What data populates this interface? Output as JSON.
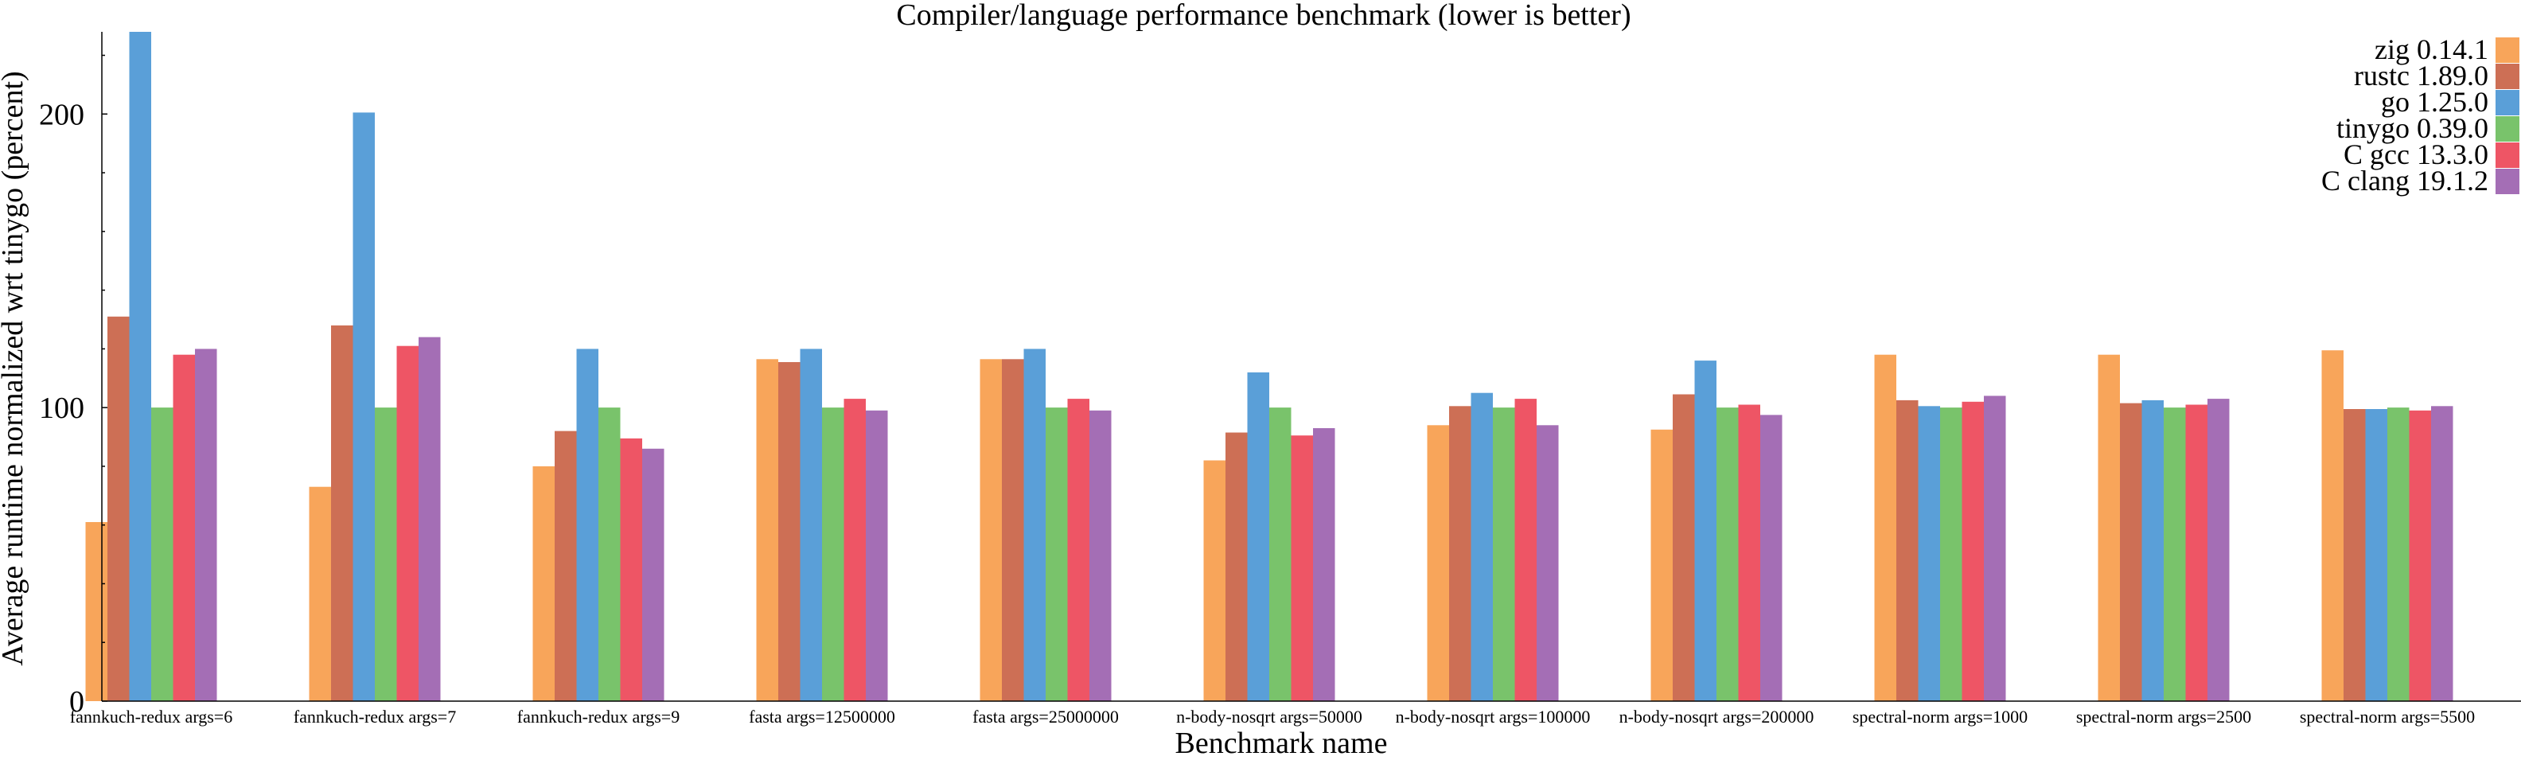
{
  "chart_data": {
    "type": "bar",
    "title": "Compiler/language performance benchmark (lower is better)",
    "xlabel": "Benchmark name",
    "ylabel": "Average runtime normalized wrt tinygo (percent)",
    "ylim": [
      0,
      228
    ],
    "yticks": [
      0,
      100,
      200
    ],
    "grid": false,
    "legend_position": "top-right",
    "categories": [
      "fannkuch-redux args=6",
      "fannkuch-redux args=7",
      "fannkuch-redux args=9",
      "fasta args=12500000",
      "fasta args=25000000",
      "n-body-nosqrt args=50000",
      "n-body-nosqrt args=100000",
      "n-body-nosqrt args=200000",
      "spectral-norm args=1000",
      "spectral-norm args=2500",
      "spectral-norm args=5500"
    ],
    "series": [
      {
        "name": "zig 0.14.1",
        "color": "#f8a55a",
        "values": [
          61,
          73,
          80,
          116.5,
          116.5,
          82,
          94,
          92.5,
          118,
          118,
          119.5
        ]
      },
      {
        "name": "rustc 1.89.0",
        "color": "#cd6f55",
        "values": [
          131,
          128,
          92,
          115.5,
          116.5,
          91.5,
          100.5,
          104.5,
          102.5,
          101.5,
          99.5
        ]
      },
      {
        "name": "go 1.25.0",
        "color": "#5a9fd8",
        "values": [
          228,
          200.5,
          120,
          120,
          120,
          112,
          105,
          116,
          100.5,
          102.5,
          99.5
        ]
      },
      {
        "name": "tinygo 0.39.0",
        "color": "#79c36b",
        "values": [
          100,
          100,
          100,
          100,
          100,
          100,
          100,
          100,
          100,
          100,
          100
        ]
      },
      {
        "name": "C gcc 13.3.0",
        "color": "#ee5565",
        "values": [
          118,
          121,
          89.5,
          103,
          103,
          90.5,
          103,
          101,
          102,
          101,
          99
        ]
      },
      {
        "name": "C clang 19.1.2",
        "color": "#a46eb5",
        "values": [
          120,
          124,
          86,
          99,
          99,
          93,
          94,
          97.5,
          104,
          103,
          100.5
        ]
      }
    ]
  }
}
